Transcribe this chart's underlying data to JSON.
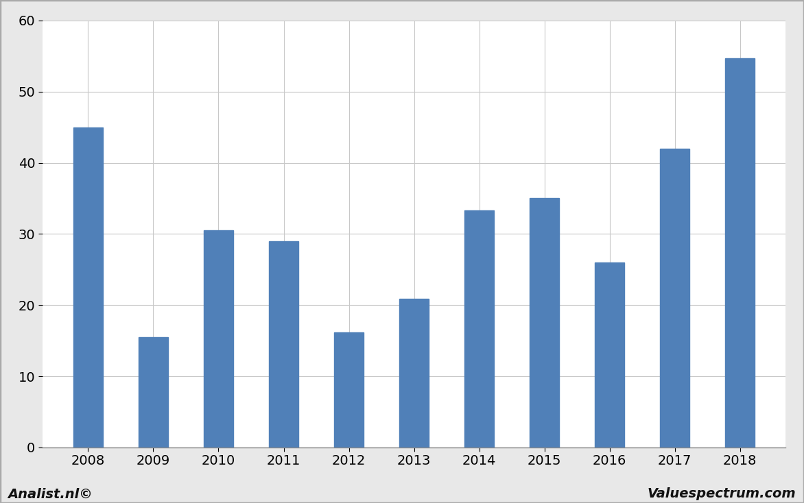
{
  "categories": [
    "2008",
    "2009",
    "2010",
    "2011",
    "2012",
    "2013",
    "2014",
    "2015",
    "2016",
    "2017",
    "2018"
  ],
  "values": [
    45.0,
    15.5,
    30.5,
    29.0,
    16.2,
    20.9,
    33.3,
    35.0,
    26.0,
    42.0,
    54.7
  ],
  "bar_color": "#5080b8",
  "bar_width": 0.45,
  "ylim": [
    0,
    60
  ],
  "yticks": [
    0,
    10,
    20,
    30,
    40,
    50,
    60
  ],
  "figure_background_color": "#e8e8e8",
  "plot_background_color": "#ffffff",
  "grid_color": "#c8c8c8",
  "footer_left": "Analist.nl©",
  "footer_right": "Valuespectrum.com",
  "footer_fontsize": 14,
  "tick_fontsize": 14,
  "border_color": "#aaaaaa"
}
